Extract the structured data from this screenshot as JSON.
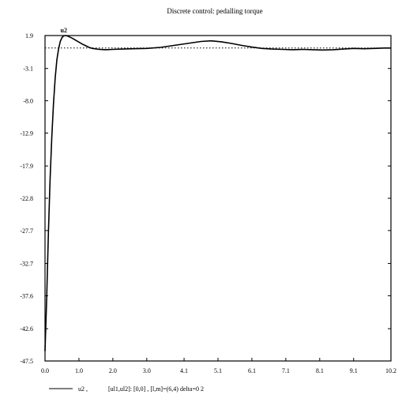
{
  "chart_data": {
    "type": "line",
    "title": "Discrete control: pedalling torque",
    "xlabel": "",
    "ylabel": "",
    "xlim": [
      0.0,
      10.2
    ],
    "ylim": [
      -47.5,
      1.9
    ],
    "x_ticks": [
      0.0,
      1.0,
      2.0,
      3.0,
      4.1,
      5.1,
      6.1,
      7.1,
      8.1,
      9.1,
      10.2
    ],
    "x_tick_labels": [
      "0.0",
      "1.0",
      "2.0",
      "3.0",
      "4.1",
      "5.1",
      "6.1",
      "7.1",
      "8.1",
      "9.1",
      "10.2"
    ],
    "y_ticks": [
      1.9,
      -3.1,
      -8.0,
      -12.9,
      -17.9,
      -22.8,
      -27.7,
      -32.7,
      -37.6,
      -42.6,
      -47.5
    ],
    "y_tick_labels": [
      "1.9",
      "-3.1",
      "-8.0",
      "-12.9",
      "-17.9",
      "-22.8",
      "-27.7",
      "-32.7",
      "-37.6",
      "-42.6",
      "-47.5"
    ],
    "grid": false,
    "series": [
      {
        "name": "u2",
        "style": "solid",
        "x": [
          0.0,
          0.05,
          0.1,
          0.15,
          0.2,
          0.25,
          0.3,
          0.35,
          0.4,
          0.45,
          0.5,
          0.55,
          0.6,
          0.65,
          0.7,
          0.8,
          0.9,
          1.0,
          1.1,
          1.2,
          1.3,
          1.4,
          1.6,
          1.8,
          2.0,
          2.3,
          2.6,
          3.0,
          3.4,
          3.8,
          4.2,
          4.6,
          4.9,
          5.2,
          5.5,
          5.8,
          6.1,
          6.4,
          6.7,
          7.0,
          7.3,
          7.6,
          7.9,
          8.2,
          8.5,
          8.8,
          9.1,
          9.4,
          9.7,
          10.0,
          10.2
        ],
        "y": [
          -46.0,
          -38.0,
          -28.0,
          -20.0,
          -13.5,
          -8.5,
          -4.5,
          -1.8,
          -0.1,
          1.0,
          1.6,
          1.85,
          1.9,
          1.85,
          1.75,
          1.5,
          1.2,
          0.9,
          0.6,
          0.35,
          0.1,
          -0.05,
          -0.2,
          -0.25,
          -0.2,
          -0.15,
          -0.1,
          -0.05,
          0.1,
          0.4,
          0.7,
          1.0,
          1.1,
          0.95,
          0.7,
          0.4,
          0.15,
          -0.05,
          -0.15,
          -0.2,
          -0.25,
          -0.2,
          -0.25,
          -0.3,
          -0.25,
          -0.15,
          -0.05,
          -0.1,
          -0.05,
          0.0,
          0.0
        ]
      },
      {
        "name": "",
        "style": "dotted",
        "x": [
          0.0,
          10.2
        ],
        "y": [
          0.0,
          0.0
        ]
      }
    ],
    "annotations": [
      {
        "text": "u2",
        "x": 0.6,
        "y": 1.9
      }
    ],
    "legend": {
      "placement": "bottom-left",
      "line": "u2 ,",
      "text": "[ul1,ul2]: [0,0] , [l,m]=(6,4) delta=0 2"
    }
  }
}
